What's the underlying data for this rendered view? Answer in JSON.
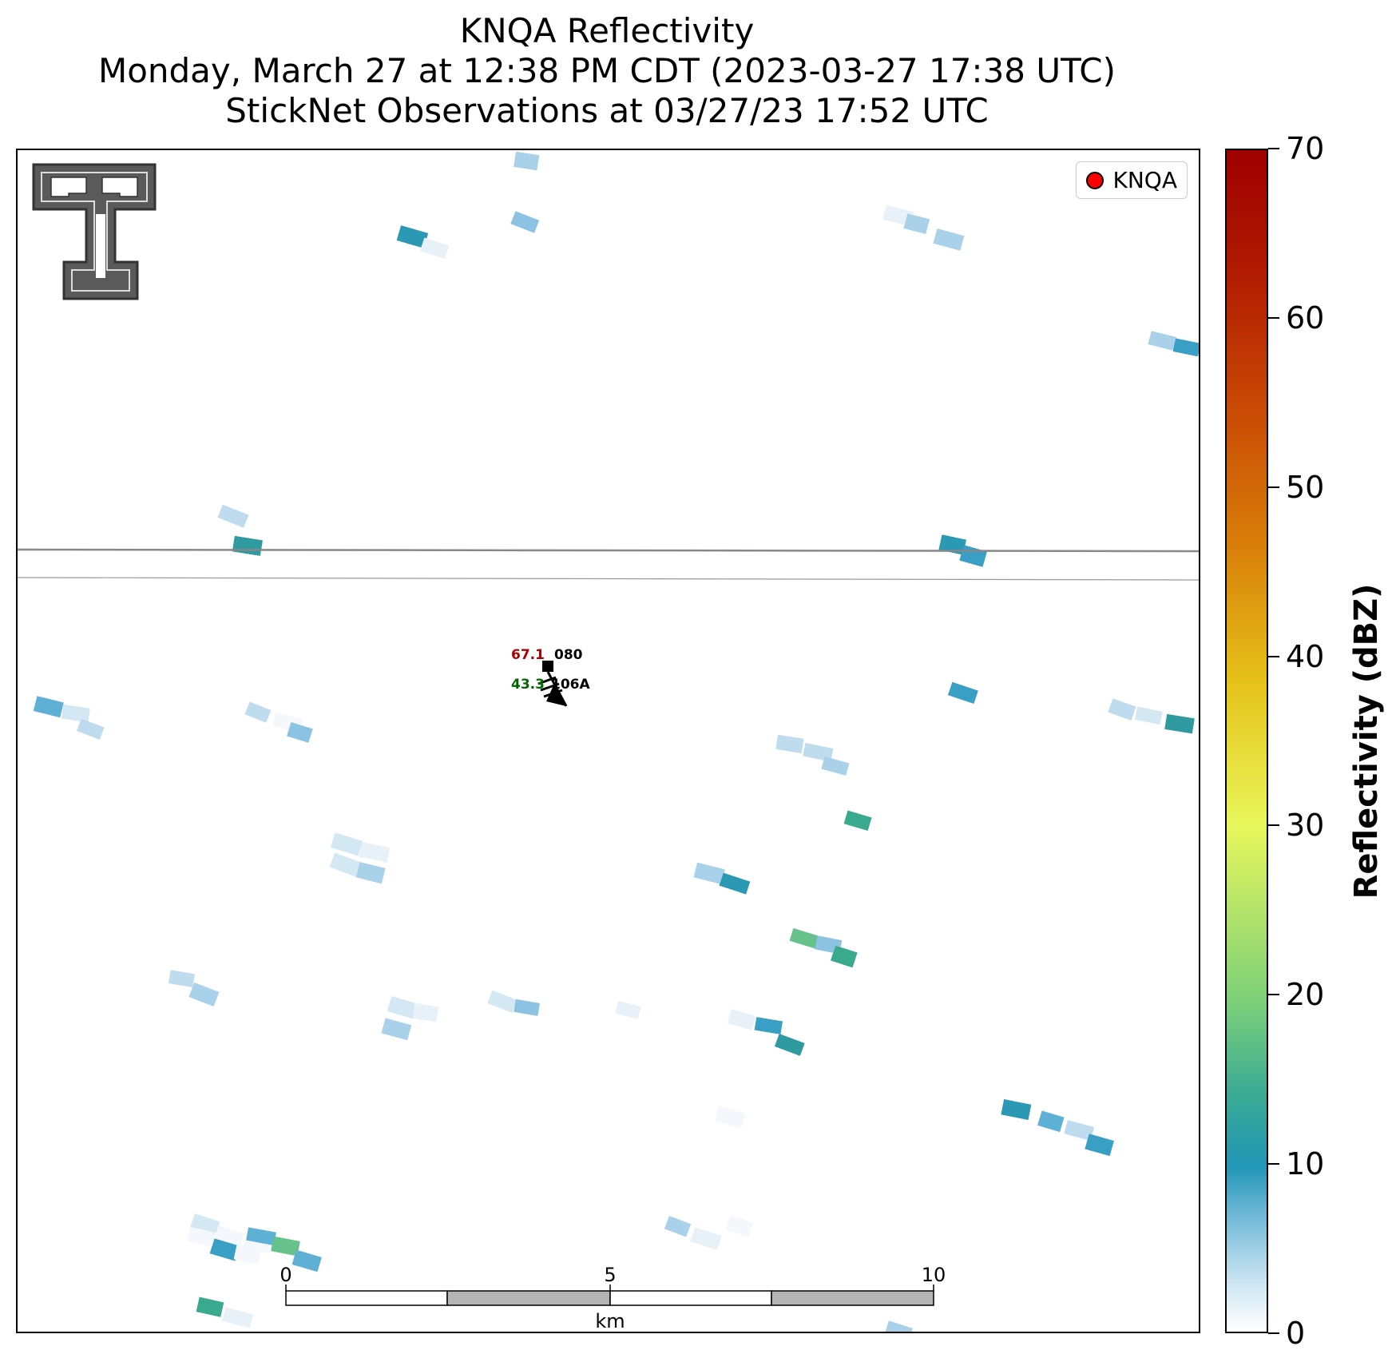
{
  "title": {
    "line1": "KNQA Reflectivity",
    "line2": "Monday, March 27 at 12:38 PM CDT (2023-03-27 17:38 UTC)",
    "line3": "StickNet Observations at 03/27/23 17:52 UTC"
  },
  "legend": {
    "label": "KNQA",
    "marker_color": "#ff0000"
  },
  "station": {
    "temperature": "67.1",
    "dewpoint": "43.3",
    "pressure": "080",
    "id": "106A",
    "temperature_color": "#aa0000",
    "dewpoint_color": "#006600"
  },
  "scalebar": {
    "labels": [
      "0",
      "5",
      "10"
    ],
    "unit": "km"
  },
  "colorbar": {
    "label": "Reflectivity (dBZ)",
    "ticks": [
      "0",
      "10",
      "20",
      "30",
      "40",
      "50",
      "60",
      "70"
    ],
    "min": 0,
    "max": 70
  },
  "logo": {
    "name": "texas-tech-double-t-logo"
  }
}
